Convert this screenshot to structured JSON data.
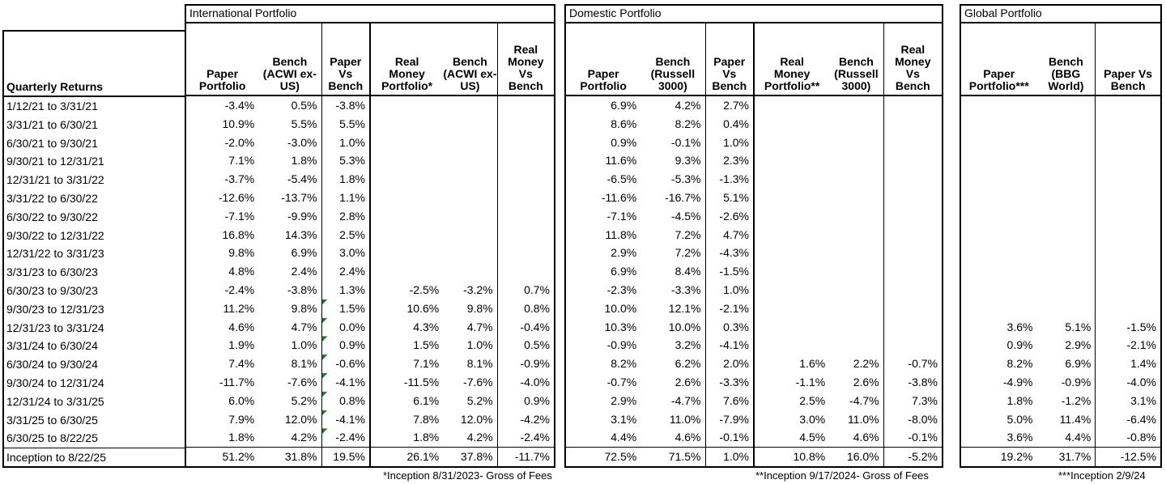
{
  "left_column": {
    "header": "Quarterly Returns",
    "row_labels": [
      "1/12/21 to 3/31/21",
      "3/31/21 to 6/30/21",
      "6/30/21 to 9/30/21",
      "9/30/21 to 12/31/21",
      "12/31/21 to 3/31/22",
      "3/31/22 to 6/30/22",
      "6/30/22 to 9/30/22",
      "9/30/22 to 12/31/22",
      "12/31/22 to 3/31/23",
      "3/31/23 to 6/30/23",
      "6/30/23 to 9/30/23",
      "9/30/23 to 12/31/23",
      "12/31/23 to 3/31/24",
      "3/31/24 to 6/30/24",
      "6/30/24 to 9/30/24",
      "9/30/24 to 12/31/24",
      "12/31/24 to 3/31/25",
      "3/31/25 to 6/30/25",
      "6/30/25 to 8/22/25",
      "Inception to 8/22/25"
    ]
  },
  "sections": [
    {
      "title": "International Portfolio",
      "columns": [
        "Paper\nPortfolio",
        "Bench\n(ACWI ex-\nUS)",
        "Paper\nVs\nBench",
        "Real\nMoney\nPortfolio*",
        "Bench\n(ACWI ex-\nUS)",
        "Real\nMoney\nVs\nBench"
      ],
      "rows": [
        [
          "-3.4%",
          "0.5%",
          "-3.8%",
          "",
          "",
          ""
        ],
        [
          "10.9%",
          "5.5%",
          "5.5%",
          "",
          "",
          ""
        ],
        [
          "-2.0%",
          "-3.0%",
          "1.0%",
          "",
          "",
          ""
        ],
        [
          "7.1%",
          "1.8%",
          "5.3%",
          "",
          "",
          ""
        ],
        [
          "-3.7%",
          "-5.4%",
          "1.8%",
          "",
          "",
          ""
        ],
        [
          "-12.6%",
          "-13.7%",
          "1.1%",
          "",
          "",
          ""
        ],
        [
          "-7.1%",
          "-9.9%",
          "2.8%",
          "",
          "",
          ""
        ],
        [
          "16.8%",
          "14.3%",
          "2.5%",
          "",
          "",
          ""
        ],
        [
          "9.8%",
          "6.9%",
          "3.0%",
          "",
          "",
          ""
        ],
        [
          "4.8%",
          "2.4%",
          "2.4%",
          "",
          "",
          ""
        ],
        [
          "-2.4%",
          "-3.8%",
          "1.3%",
          "-2.5%",
          "-3.2%",
          "0.7%"
        ],
        [
          "11.2%",
          "9.8%",
          "1.5%",
          "10.6%",
          "9.8%",
          "0.8%"
        ],
        [
          "4.6%",
          "4.7%",
          "0.0%",
          "4.3%",
          "4.7%",
          "-0.4%"
        ],
        [
          "1.9%",
          "1.0%",
          "0.9%",
          "1.5%",
          "1.0%",
          "0.5%"
        ],
        [
          "7.4%",
          "8.1%",
          "-0.6%",
          "7.1%",
          "8.1%",
          "-0.9%"
        ],
        [
          "-11.7%",
          "-7.6%",
          "-4.1%",
          "-11.5%",
          "-7.6%",
          "-4.0%"
        ],
        [
          "6.0%",
          "5.2%",
          "0.8%",
          "6.1%",
          "5.2%",
          "0.9%"
        ],
        [
          "7.9%",
          "12.0%",
          "-4.1%",
          "7.8%",
          "12.0%",
          "-4.2%"
        ],
        [
          "1.8%",
          "4.2%",
          "-2.4%",
          "1.8%",
          "4.2%",
          "-2.4%"
        ],
        [
          "51.2%",
          "31.8%",
          "19.5%",
          "26.1%",
          "37.8%",
          "-11.7%"
        ]
      ]
    },
    {
      "title": "Domestic Portfolio",
      "columns": [
        "Paper\nPortfolio",
        "Bench\n(Russell\n3000)",
        "Paper\nVs\nBench",
        "Real\nMoney\nPortfolio**",
        "Bench\n(Russell\n3000)",
        "Real\nMoney\nVs\nBench"
      ],
      "rows": [
        [
          "6.9%",
          "4.2%",
          "2.7%",
          "",
          "",
          ""
        ],
        [
          "8.6%",
          "8.2%",
          "0.4%",
          "",
          "",
          ""
        ],
        [
          "0.9%",
          "-0.1%",
          "1.0%",
          "",
          "",
          ""
        ],
        [
          "11.6%",
          "9.3%",
          "2.3%",
          "",
          "",
          ""
        ],
        [
          "-6.5%",
          "-5.3%",
          "-1.3%",
          "",
          "",
          ""
        ],
        [
          "-11.6%",
          "-16.7%",
          "5.1%",
          "",
          "",
          ""
        ],
        [
          "-7.1%",
          "-4.5%",
          "-2.6%",
          "",
          "",
          ""
        ],
        [
          "11.8%",
          "7.2%",
          "4.7%",
          "",
          "",
          ""
        ],
        [
          "2.9%",
          "7.2%",
          "-4.3%",
          "",
          "",
          ""
        ],
        [
          "6.9%",
          "8.4%",
          "-1.5%",
          "",
          "",
          ""
        ],
        [
          "-2.3%",
          "-3.3%",
          "1.0%",
          "",
          "",
          ""
        ],
        [
          "10.0%",
          "12.1%",
          "-2.1%",
          "",
          "",
          ""
        ],
        [
          "10.3%",
          "10.0%",
          "0.3%",
          "",
          "",
          ""
        ],
        [
          "-0.9%",
          "3.2%",
          "-4.1%",
          "",
          "",
          ""
        ],
        [
          "8.2%",
          "6.2%",
          "2.0%",
          "1.6%",
          "2.2%",
          "-0.7%"
        ],
        [
          "-0.7%",
          "2.6%",
          "-3.3%",
          "-1.1%",
          "2.6%",
          "-3.8%"
        ],
        [
          "2.9%",
          "-4.7%",
          "7.6%",
          "2.5%",
          "-4.7%",
          "7.3%"
        ],
        [
          "3.1%",
          "11.0%",
          "-7.9%",
          "3.0%",
          "11.0%",
          "-8.0%"
        ],
        [
          "4.4%",
          "4.6%",
          "-0.1%",
          "4.5%",
          "4.6%",
          "-0.1%"
        ],
        [
          "72.5%",
          "71.5%",
          "1.0%",
          "10.8%",
          "16.0%",
          "-5.2%"
        ]
      ]
    },
    {
      "title": "Global Portfolio",
      "columns": [
        "Paper\nPortfolio***",
        "Bench\n(BBG\nWorld)",
        "Paper Vs\nBench"
      ],
      "rows": [
        [
          "",
          "",
          ""
        ],
        [
          "",
          "",
          ""
        ],
        [
          "",
          "",
          ""
        ],
        [
          "",
          "",
          ""
        ],
        [
          "",
          "",
          ""
        ],
        [
          "",
          "",
          ""
        ],
        [
          "",
          "",
          ""
        ],
        [
          "",
          "",
          ""
        ],
        [
          "",
          "",
          ""
        ],
        [
          "",
          "",
          ""
        ],
        [
          "",
          "",
          ""
        ],
        [
          "",
          "",
          ""
        ],
        [
          "3.6%",
          "5.1%",
          "-1.5%"
        ],
        [
          "0.9%",
          "2.9%",
          "-2.1%"
        ],
        [
          "8.2%",
          "6.9%",
          "1.4%"
        ],
        [
          "-4.9%",
          "-0.9%",
          "-4.0%"
        ],
        [
          "1.8%",
          "-1.2%",
          "3.1%"
        ],
        [
          "5.0%",
          "11.4%",
          "-6.4%"
        ],
        [
          "3.6%",
          "4.4%",
          "-0.8%"
        ],
        [
          "19.2%",
          "31.7%",
          "-12.5%"
        ]
      ]
    }
  ],
  "error_flags": {
    "section_index": 0,
    "column_index": 2,
    "row_indices": [
      11,
      12,
      13,
      14,
      15,
      16,
      17,
      18
    ],
    "color": "#1e7b34"
  },
  "footnotes": [
    "*Inception 8/31/2023- Gross of Fees",
    "**Inception 9/17/2024- Gross of Fees",
    "***Inception 2/9/24"
  ],
  "colors": {
    "text": "#000000",
    "border": "#000000",
    "background": "#ffffff",
    "flag_green": "#1e7b34"
  }
}
